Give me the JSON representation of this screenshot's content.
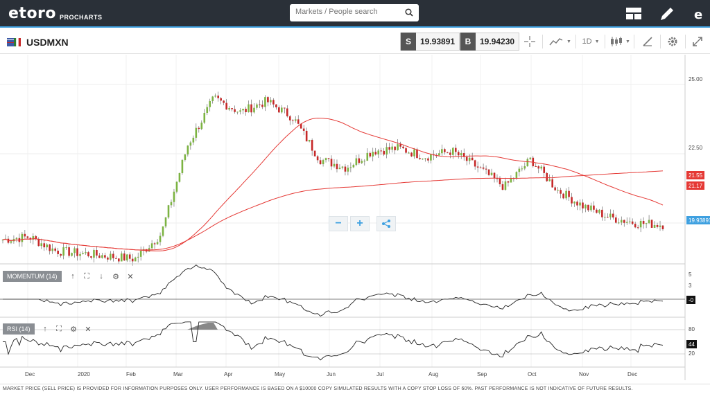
{
  "app": {
    "logo": "etoro",
    "logo_sub": "PROCHARTS",
    "search_placeholder": "Markets / People search"
  },
  "symbol": {
    "name": "USDMXN",
    "sell_tag": "S",
    "sell_price": "19.93891",
    "buy_tag": "B",
    "buy_price": "19.94230",
    "interval": "1D"
  },
  "price_axis": {
    "labels": [
      "25.00",
      "22.50"
    ],
    "tag_ma1": "21.55",
    "tag_ma2": "21.17",
    "tag_last": "19.93891",
    "colors": {
      "ma": "#e53935",
      "last": "#3ea0e0"
    }
  },
  "momentum": {
    "label": "MOMENTUM (14)",
    "axis": [
      "5",
      "3"
    ],
    "last": "-0"
  },
  "rsi": {
    "label": "RSI (14)",
    "axis": [
      "80",
      "20"
    ],
    "last": "44"
  },
  "x_axis": [
    "Dec",
    "2020",
    "Feb",
    "Mar",
    "Apr",
    "May",
    "Jun",
    "Jul",
    "Aug",
    "Sep",
    "Oct",
    "Nov",
    "Dec"
  ],
  "zoom": {
    "minus": "−",
    "plus": "+"
  },
  "footer": "MARKET PRICE (SELL PRICE) IS PROVIDED FOR INFORMATION PURPOSES ONLY. USER PERFORMANCE IS BASED ON A $10000 COPY SIMULATED RESULTS WITH A COPY STOP LOSS OF 60%. PAST PERFORMANCE IS NOT INDICATIVE OF FUTURE RESULTS.",
  "chart_data": {
    "type": "candlestick",
    "title": "",
    "colors": {
      "up": "#7cb342",
      "down": "#c62828"
    },
    "ylim": [
      18.6,
      25.9
    ],
    "series": [
      {
        "x": "Dec",
        "close": 19.4
      },
      {
        "x": "Dec",
        "close": 19.5
      },
      {
        "x": "2020",
        "close": 19.0
      },
      {
        "x": "2020",
        "close": 18.9
      },
      {
        "x": "Feb",
        "close": 18.8
      },
      {
        "x": "Feb",
        "close": 18.7
      },
      {
        "x": "Mar",
        "close": 19.6
      },
      {
        "x": "Mar",
        "close": 22.8
      },
      {
        "x": "Apr",
        "close": 24.5
      },
      {
        "x": "Apr",
        "close": 24.0
      },
      {
        "x": "May",
        "close": 24.4
      },
      {
        "x": "May",
        "close": 23.8
      },
      {
        "x": "Jun",
        "close": 22.3
      },
      {
        "x": "Jun",
        "close": 22.0
      },
      {
        "x": "Jul",
        "close": 22.6
      },
      {
        "x": "Jul",
        "close": 22.7
      },
      {
        "x": "Aug",
        "close": 22.4
      },
      {
        "x": "Aug",
        "close": 22.6
      },
      {
        "x": "Sep",
        "close": 22.0
      },
      {
        "x": "Sep",
        "close": 21.3
      },
      {
        "x": "Oct",
        "close": 22.3
      },
      {
        "x": "Oct",
        "close": 21.2
      },
      {
        "x": "Nov",
        "close": 20.6
      },
      {
        "x": "Nov",
        "close": 20.2
      },
      {
        "x": "Dec",
        "close": 20.0
      },
      {
        "x": "Dec",
        "close": 19.94
      }
    ]
  }
}
